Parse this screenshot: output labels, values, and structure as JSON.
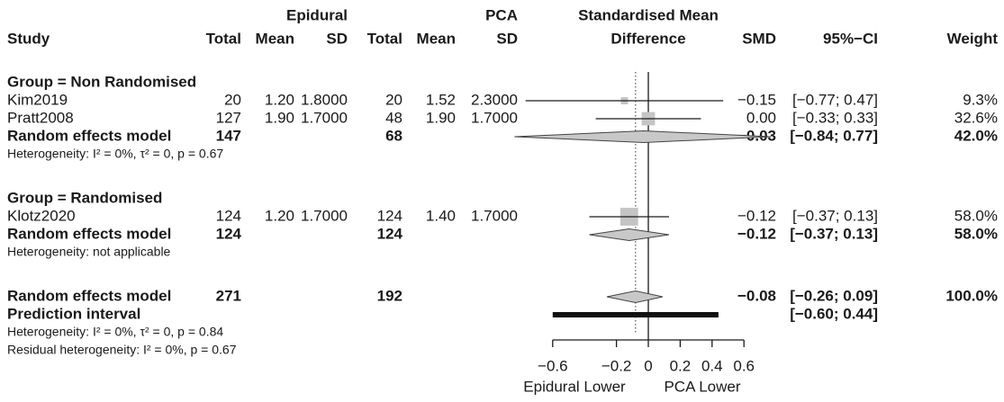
{
  "chart_data": {
    "type": "forest",
    "header": {
      "study": "Study",
      "epidural": "Epidural",
      "pca": "PCA",
      "total": "Total",
      "mean": "Mean",
      "sd": "SD",
      "effect": [
        "Standardised Mean",
        "Difference"
      ],
      "smd": "SMD",
      "ci": "95%−CI",
      "weight": "Weight"
    },
    "xlim": [
      -0.6,
      0.6
    ],
    "xticks": [
      {
        "value": -0.6,
        "label": "−0.6"
      },
      {
        "value": -0.2,
        "label": "−0.2"
      },
      0,
      0.2,
      0.4,
      0.6
    ],
    "xlabels": [
      "Epidural Lower",
      "PCA Lower"
    ],
    "rows": [
      {
        "kind": "group",
        "label": "Group = Non Randomised"
      },
      {
        "kind": "study",
        "label": "Kim2019",
        "cells": {
          "e_total": "20",
          "e_mean": "1.20",
          "e_sd": "1.8000",
          "p_total": "20",
          "p_mean": "1.52",
          "p_sd": "2.3000"
        },
        "smd": -0.15,
        "smd_label": "−0.15",
        "lower": -0.77,
        "upper": 0.47,
        "ci_label": "[−0.77; 0.47]",
        "weight": 9.3,
        "weight_label": "9.3%"
      },
      {
        "kind": "study",
        "label": "Pratt2008",
        "cells": {
          "e_total": "127",
          "e_mean": "1.90",
          "e_sd": "1.7000",
          "p_total": "48",
          "p_mean": "1.90",
          "p_sd": "1.7000"
        },
        "smd": 0.0,
        "smd_label": "0.00",
        "lower": -0.33,
        "upper": 0.33,
        "ci_label": "[−0.33; 0.33]",
        "weight": 32.6,
        "weight_label": "32.6%"
      },
      {
        "kind": "pooled",
        "label": "Random effects model",
        "cells": {
          "e_total": "147",
          "p_total": "68"
        },
        "smd": -0.03,
        "smd_label": "−0.03",
        "lower": -0.84,
        "upper": 0.77,
        "ci_label": "[−0.84; 0.77]",
        "weight": 42.0,
        "weight_label": "42.0%"
      },
      {
        "kind": "note",
        "label": "Heterogeneity: I² = 0%, τ² = 0, p = 0.67"
      },
      {
        "kind": "group",
        "label": "Group = Randomised"
      },
      {
        "kind": "study",
        "label": "Klotz2020",
        "cells": {
          "e_total": "124",
          "e_mean": "1.20",
          "e_sd": "1.7000",
          "p_total": "124",
          "p_mean": "1.40",
          "p_sd": "1.7000"
        },
        "smd": -0.12,
        "smd_label": "−0.12",
        "lower": -0.37,
        "upper": 0.13,
        "ci_label": "[−0.37; 0.13]",
        "weight": 58.0,
        "weight_label": "58.0%"
      },
      {
        "kind": "pooled",
        "label": "Random effects model",
        "cells": {
          "e_total": "124",
          "p_total": "124"
        },
        "smd": -0.12,
        "smd_label": "−0.12",
        "lower": -0.37,
        "upper": 0.13,
        "ci_label": "[−0.37; 0.13]",
        "weight": 58.0,
        "weight_label": "58.0%"
      },
      {
        "kind": "note",
        "label": "Heterogeneity: not applicable"
      },
      {
        "kind": "overall",
        "label": "Random effects model",
        "cells": {
          "e_total": "271",
          "p_total": "192"
        },
        "smd": -0.08,
        "smd_label": "−0.08",
        "lower": -0.26,
        "upper": 0.09,
        "ci_label": "[−0.26; 0.09]",
        "weight": 100.0,
        "weight_label": "100.0%"
      },
      {
        "kind": "prediction",
        "label": "Prediction interval",
        "lower": -0.6,
        "upper": 0.44,
        "ci_label": "[−0.60; 0.44]"
      },
      {
        "kind": "note",
        "label": "Heterogeneity: I² = 0%, τ² = 0, p = 0.84"
      },
      {
        "kind": "note",
        "label": "Residual heterogeneity: I² = 0%, p = 0.67"
      }
    ]
  }
}
